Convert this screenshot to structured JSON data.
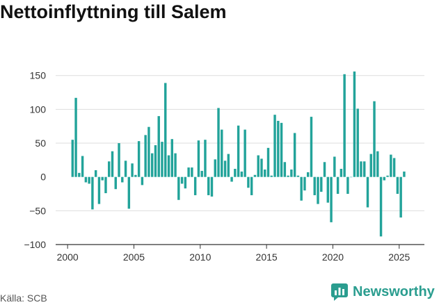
{
  "title": "Nettoinflyttning till Salem",
  "source": "Källa: SCB",
  "brand": {
    "name": "Newsworthy",
    "icon": "newsworthy-logo-icon",
    "color": "#2a9d8f"
  },
  "chart_data": {
    "type": "bar",
    "title": "Nettoinflyttning till Salem",
    "xlabel": "",
    "ylabel": "",
    "bar_color": "#22a39a",
    "grid": true,
    "xlim": [
      1999.1,
      2026.9
    ],
    "ylim": [
      -100,
      160
    ],
    "yticks": [
      -100,
      -50,
      0,
      50,
      100,
      150
    ],
    "xticks": [
      2000,
      2005,
      2010,
      2015,
      2020,
      2025
    ],
    "ytick_labels": [
      "−100",
      "−50",
      "0",
      "50",
      "100",
      "150"
    ],
    "xtick_labels": [
      "2000",
      "2005",
      "2010",
      "2015",
      "2020",
      "2025"
    ],
    "series": [
      {
        "start": "2000-05",
        "step": "quarter",
        "values": [
          55,
          117,
          6,
          31,
          -8,
          -10,
          -48,
          10,
          -40,
          -5,
          -24,
          23,
          38,
          -18,
          50,
          -8,
          24,
          -47,
          20,
          3,
          53,
          -12,
          62,
          74,
          35,
          47,
          90,
          52,
          139,
          32,
          56,
          35,
          -34,
          -10,
          -17,
          14,
          14,
          -27,
          54,
          9,
          55,
          -27,
          -29,
          26,
          102,
          70,
          24,
          34,
          -7,
          12,
          76,
          8,
          70,
          -16,
          -27,
          3,
          32,
          27,
          11,
          43,
          2,
          92,
          83,
          80,
          22,
          2,
          11,
          65,
          2,
          -35,
          -20,
          7,
          89,
          -27,
          -40,
          -22,
          22,
          -38,
          -67,
          30,
          -25,
          12,
          152,
          -25,
          0,
          156,
          101,
          23,
          23,
          -45,
          34,
          112,
          38,
          -88,
          -5,
          2,
          33,
          28,
          -25,
          -60,
          8
        ]
      }
    ]
  }
}
